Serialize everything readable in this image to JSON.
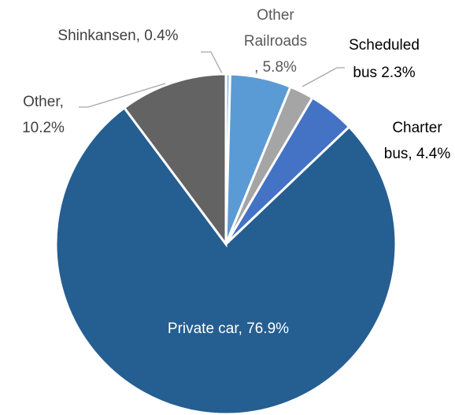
{
  "chart_data": {
    "type": "pie",
    "categories": [
      "Shinkansen",
      "Other Railroads",
      "Scheduled bus",
      "Charter bus",
      "Private car",
      "Other"
    ],
    "values": [
      0.4,
      5.8,
      2.3,
      4.4,
      76.9,
      10.2
    ],
    "value_labels": [
      [
        "Shinkansen, 0.4%"
      ],
      [
        "Other",
        "Railroads",
        ", 5.8%"
      ],
      [
        "Scheduled",
        "bus 2.3%"
      ],
      [
        "Charter",
        "bus, 4.4%"
      ],
      [
        "Private car, 76.9%"
      ],
      [
        "Other,",
        "10.2%"
      ]
    ],
    "colors": [
      "#9dc3e6",
      "#5b9bd5",
      "#a5a5a5",
      "#4472c4",
      "#255e91",
      "#636363"
    ]
  }
}
